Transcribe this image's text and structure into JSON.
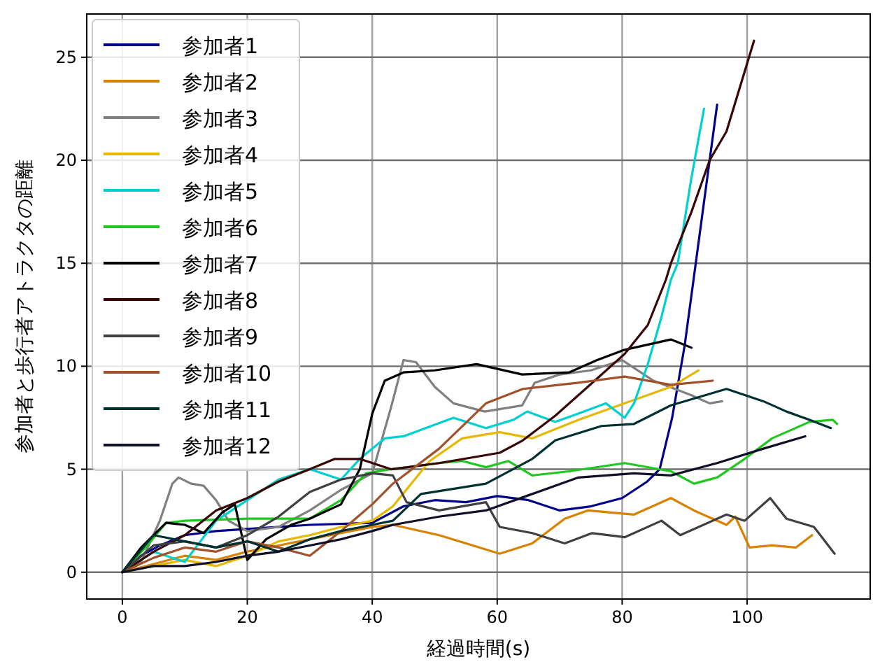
{
  "chart_data": {
    "type": "line",
    "xlabel": "経過時間(s)",
    "ylabel": "参加者と歩行者アトラクタの距離",
    "xlim": [
      -5.7,
      119.7
    ],
    "ylim": [
      -1.3,
      27.1
    ],
    "xticks": [
      0,
      20,
      40,
      60,
      80,
      100
    ],
    "yticks": [
      0,
      5,
      10,
      15,
      20,
      25
    ],
    "grid": true,
    "legend": "top left",
    "line_style": "solid",
    "marker": "none",
    "series": [
      {
        "name": "参加者1",
        "color": "#00008b",
        "x": [
          0,
          3,
          6,
          10,
          15,
          20,
          30,
          40,
          45,
          50,
          55,
          60,
          65,
          70,
          75,
          80,
          84,
          86,
          88,
          90,
          92,
          94,
          95.2
        ],
        "values": [
          0,
          0.8,
          1.3,
          1.8,
          2.0,
          2.1,
          2.3,
          2.4,
          3.2,
          3.5,
          3.4,
          3.7,
          3.5,
          3.0,
          3.2,
          3.6,
          4.4,
          5,
          7.5,
          11,
          15.5,
          20,
          22.7
        ]
      },
      {
        "name": "参加者2",
        "color": "#d98200",
        "x": [
          0,
          5,
          10,
          15,
          20,
          25,
          30,
          35,
          40,
          43.3,
          50.7,
          60.4,
          65.6,
          70.8,
          74.5,
          81.9,
          87.8,
          91.5,
          96.7,
          98.1,
          100.4,
          104,
          107.8,
          110.4
        ],
        "values": [
          0,
          0.4,
          0.8,
          0.6,
          1.0,
          1.3,
          1.6,
          1.9,
          2.2,
          2.3,
          1.8,
          0.9,
          1.4,
          2.6,
          3.0,
          2.8,
          3.6,
          3.0,
          2.3,
          2.7,
          1.2,
          1.3,
          1.2,
          1.8
        ]
      },
      {
        "name": "参加者3",
        "color": "#808080",
        "x": [
          0,
          3,
          6,
          8,
          9,
          11,
          13,
          15,
          17,
          20,
          25,
          30,
          35,
          40,
          43,
          45,
          47,
          50,
          53,
          58,
          64,
          66,
          70,
          75,
          80,
          85,
          91,
          94,
          96
        ],
        "values": [
          0,
          0.5,
          2.5,
          4.3,
          4.6,
          4.3,
          4.2,
          3.5,
          2.5,
          2.0,
          2.2,
          3.0,
          4.0,
          4.8,
          8,
          10.3,
          10.2,
          9.0,
          8.2,
          7.8,
          8.1,
          9.2,
          9.6,
          9.8,
          10.3,
          9.3,
          8.6,
          8.2,
          8.3
        ]
      },
      {
        "name": "参加者4",
        "color": "#e6b800",
        "x": [
          0,
          5,
          10,
          15,
          20,
          25,
          30,
          35,
          40,
          43.3,
          49.2,
          54.4,
          60.4,
          65.6,
          73,
          80.4,
          87.8,
          92.2
        ],
        "values": [
          0,
          0.3,
          0.6,
          0.3,
          0.8,
          1.5,
          1.8,
          2.2,
          2.5,
          3.2,
          5.4,
          6.5,
          6.8,
          6.5,
          7.4,
          8.2,
          9.0,
          9.8
        ]
      },
      {
        "name": "参加者5",
        "color": "#00d0d0",
        "x": [
          0,
          5,
          10,
          15,
          20,
          25,
          30,
          35,
          38,
          42,
          45,
          53,
          58.2,
          62.6,
          64.8,
          69.3,
          73,
          77.4,
          80.4,
          81.9,
          84.1,
          86.3,
          87.8,
          88.9,
          91,
          93.1
        ],
        "values": [
          0,
          1,
          0.5,
          2.5,
          3.5,
          4.5,
          5,
          4.5,
          5.5,
          6.5,
          6.6,
          7.5,
          7.0,
          7.4,
          7.8,
          7.3,
          7.7,
          8.2,
          7.5,
          8.2,
          10.1,
          12.4,
          14.2,
          15,
          19,
          22.5
        ]
      },
      {
        "name": "参加者6",
        "color": "#1ec81e",
        "x": [
          0,
          4,
          7,
          10,
          20,
          30,
          35,
          39,
          43,
          50.7,
          54.4,
          58.2,
          61.8,
          65.6,
          71.5,
          80.4,
          87.8,
          91.5,
          95.2,
          99.6,
          104,
          110,
          113.7,
          114.4
        ],
        "values": [
          0,
          1.3,
          2.4,
          2.5,
          2.6,
          2.6,
          3.5,
          4.8,
          5.0,
          5.3,
          5.4,
          5.1,
          5.4,
          4.7,
          4.9,
          5.3,
          4.9,
          4.3,
          4.6,
          5.5,
          6.5,
          7.3,
          7.4,
          7.2
        ]
      },
      {
        "name": "参加者7",
        "color": "#000000",
        "x": [
          0,
          3,
          7,
          10,
          13,
          16,
          18,
          20,
          23,
          27,
          30,
          35,
          38,
          40,
          42,
          45,
          50,
          56.7,
          64,
          71.5,
          76,
          80.4,
          87.8,
          91.1
        ],
        "values": [
          0,
          1.2,
          2.4,
          2.3,
          1.9,
          2.9,
          3.3,
          0.6,
          1.6,
          2.3,
          2.6,
          3.3,
          5,
          7.7,
          9.3,
          9.7,
          9.8,
          10.1,
          9.6,
          9.7,
          10.3,
          10.8,
          11.3,
          10.9
        ]
      },
      {
        "name": "参加者8",
        "color": "#3a0505",
        "x": [
          0,
          5,
          10,
          15,
          20,
          25,
          30,
          34,
          38,
          43,
          50.7,
          60.4,
          64.1,
          69.3,
          74.5,
          80.4,
          84.1,
          87,
          87.8,
          91.1,
          94,
          96.7,
          101.1
        ],
        "values": [
          0,
          1.0,
          1.8,
          3.0,
          3.6,
          4.4,
          5.0,
          5.5,
          5.5,
          5.0,
          5.3,
          5.8,
          6.4,
          7.6,
          9.0,
          10.6,
          12.0,
          14.2,
          15,
          17.5,
          20,
          21.4,
          25.8
        ]
      },
      {
        "name": "参加者9",
        "color": "#404040",
        "x": [
          0,
          5,
          10,
          15,
          20,
          25,
          30,
          35,
          40,
          43.3,
          45.5,
          50.7,
          58.2,
          60.4,
          65.6,
          70.8,
          75.2,
          80.4,
          86.3,
          89.3,
          95.2,
          96.7,
          99.6,
          103.7,
          106.3,
          110.7,
          114
        ],
        "values": [
          0,
          1.3,
          1.5,
          1.2,
          1.8,
          2.7,
          3.9,
          4.5,
          4.8,
          4.7,
          3.4,
          3.0,
          3.4,
          2.2,
          1.9,
          1.4,
          1.9,
          1.7,
          2.5,
          1.8,
          2.6,
          2.8,
          2.5,
          3.6,
          2.6,
          2.2,
          0.9
        ]
      },
      {
        "name": "参加者10",
        "color": "#a0522d",
        "x": [
          0,
          5,
          10,
          15,
          20,
          25,
          30,
          35,
          40,
          43.3,
          50.7,
          58.2,
          64.1,
          73,
          80.4,
          87.8,
          94.5
        ],
        "values": [
          0,
          0.7,
          1.2,
          1.0,
          1.5,
          1.2,
          0.8,
          2.0,
          3.3,
          4.3,
          6.0,
          8.2,
          8.9,
          9.2,
          9.5,
          9.1,
          9.3
        ]
      },
      {
        "name": "参加者11",
        "color": "#003030",
        "x": [
          0,
          5,
          10,
          15,
          20,
          25,
          30,
          35,
          40,
          43.3,
          47.8,
          58.2,
          65.6,
          69.3,
          76.7,
          81.9,
          87.8,
          96.7,
          102.6,
          106.3,
          110,
          113.4
        ],
        "values": [
          0,
          1.8,
          1.5,
          1.2,
          1.5,
          1.0,
          1.6,
          2.0,
          2.3,
          2.5,
          3.8,
          4.3,
          5.5,
          6.4,
          7.1,
          7.2,
          8.1,
          8.9,
          8.3,
          7.8,
          7.4,
          7.0
        ]
      },
      {
        "name": "参加者12",
        "color": "#101028",
        "x": [
          0,
          5,
          10,
          15,
          20,
          25,
          30,
          35,
          40,
          43.3,
          50.7,
          58.2,
          65.6,
          73,
          81.9,
          87.8,
          95.2,
          102.6,
          109.3
        ],
        "values": [
          0,
          0.3,
          0.3,
          0.5,
          0.8,
          1.0,
          1.3,
          1.6,
          2.0,
          2.3,
          2.7,
          3.0,
          3.8,
          4.6,
          4.8,
          4.7,
          5.3,
          6.0,
          6.6
        ]
      }
    ]
  }
}
